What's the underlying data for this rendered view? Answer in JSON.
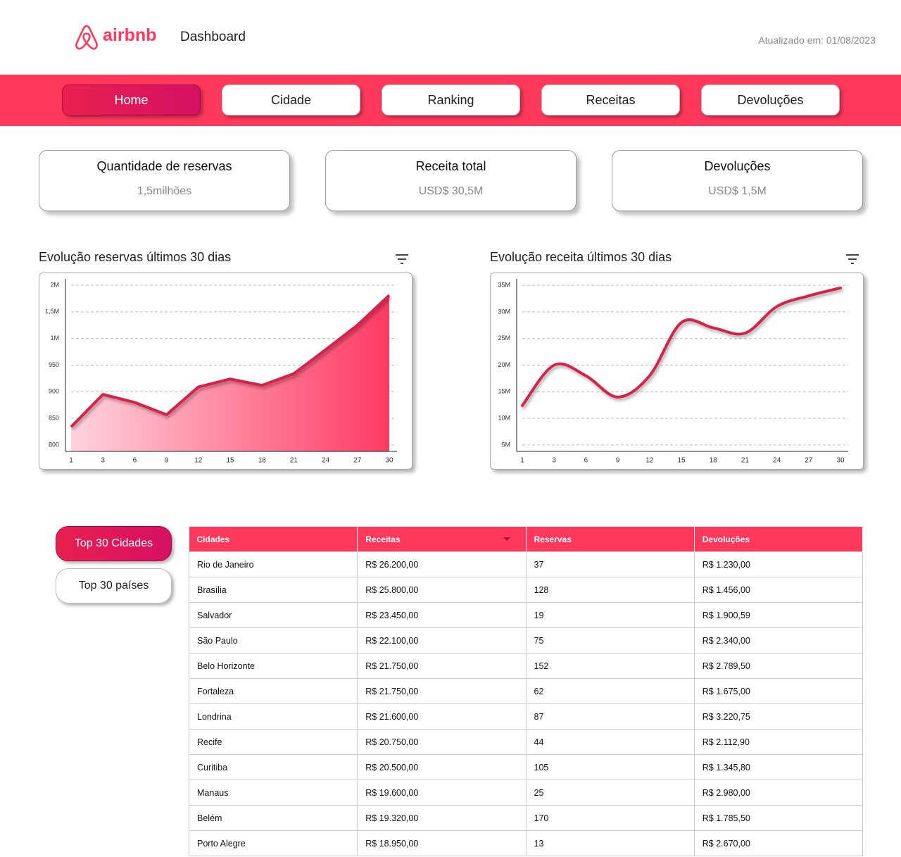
{
  "header": {
    "logo": "airbnb",
    "title": "Dashboard",
    "updated": "Atualizado em: 01/08/2023"
  },
  "nav": [
    "Home",
    "Cidade",
    "Ranking",
    "Receitas",
    "Devoluções"
  ],
  "kpis": [
    {
      "label": "Quantidade de reservas",
      "value": "1,5milhões"
    },
    {
      "label": "Receita total",
      "value": "USD$ 30,5M"
    },
    {
      "label": "Devoluções",
      "value": "USD$ 1,5M"
    }
  ],
  "chart_data": [
    {
      "type": "area",
      "title": "Evolução reservas últimos 30 dias",
      "categories": [
        "1",
        "3",
        "6",
        "9",
        "12",
        "15",
        "18",
        "21",
        "24",
        "27",
        "30"
      ],
      "values": [
        834,
        895,
        880,
        857,
        909,
        924,
        912,
        934,
        979,
        1250,
        1810
      ],
      "color": "#d6224a",
      "y_scale": "tick-spaced",
      "ylim": [
        800,
        2000
      ],
      "yticks": [
        800,
        850,
        900,
        950,
        {
          "value": 1000,
          "label": "1M"
        },
        {
          "value": 1500,
          "label": "1,5M"
        },
        {
          "value": 2000,
          "label": "2M"
        }
      ],
      "grid": true
    },
    {
      "type": "line",
      "title": "Evolução receita últimos 30 dias",
      "categories": [
        "1",
        "3",
        "6",
        "9",
        "12",
        "15",
        "18",
        "21",
        "24",
        "27",
        "30"
      ],
      "values": [
        12.4,
        20,
        18,
        14,
        18,
        28,
        27,
        26,
        31,
        33,
        34.5
      ],
      "color": "#d6224a",
      "y_scale": "linear",
      "ylim": [
        3.8,
        36.2
      ],
      "yticks": [
        {
          "value": 5,
          "label": "5M"
        },
        {
          "value": 10,
          "label": "10M"
        },
        {
          "value": 15,
          "label": "15M"
        },
        {
          "value": 20,
          "label": "20M"
        },
        {
          "value": 25,
          "label": "25M"
        },
        {
          "value": 30,
          "label": "30M"
        },
        {
          "value": 35,
          "label": "35M"
        }
      ],
      "grid": true
    }
  ],
  "toggle": [
    "Top 30 Cidades",
    "Top 30 países"
  ],
  "table": {
    "columns": [
      "Cidades",
      "Receitas",
      "Reservas",
      "Devoluções"
    ],
    "rows": [
      [
        "Rio de Janeiro",
        "R$ 26.200,00",
        "37",
        "R$ 1.230,00"
      ],
      [
        "Brasília",
        "R$ 25.800,00",
        "128",
        "R$ 1.456,00"
      ],
      [
        "Salvador",
        "R$ 23.450,00",
        "19",
        "R$ 1.900,59"
      ],
      [
        "São Paulo",
        "R$ 22.100,00",
        "75",
        "R$ 2.340,00"
      ],
      [
        "Belo Horizonte",
        "R$ 21.750,00",
        "152",
        "R$ 2.789,50"
      ],
      [
        "Fortaleza",
        "R$ 21.750,00",
        "62",
        "R$ 1.675,00"
      ],
      [
        "Londrina",
        "R$ 21.600,00",
        "87",
        "R$ 3.220,75"
      ],
      [
        "Recife",
        "R$ 20.750,00",
        "44",
        "R$ 2.112,90"
      ],
      [
        "Curitiba",
        "R$ 20.500,00",
        "105",
        "R$ 1.345,80"
      ],
      [
        "Manaus",
        "R$ 19.600,00",
        "25",
        "R$ 2.980,00"
      ],
      [
        "Belém",
        "R$ 19.320,00",
        "170",
        "R$ 1.785,50"
      ],
      [
        "Porto Alegre",
        "R$ 18.950,00",
        "13",
        "R$ 2.670,00"
      ]
    ]
  }
}
